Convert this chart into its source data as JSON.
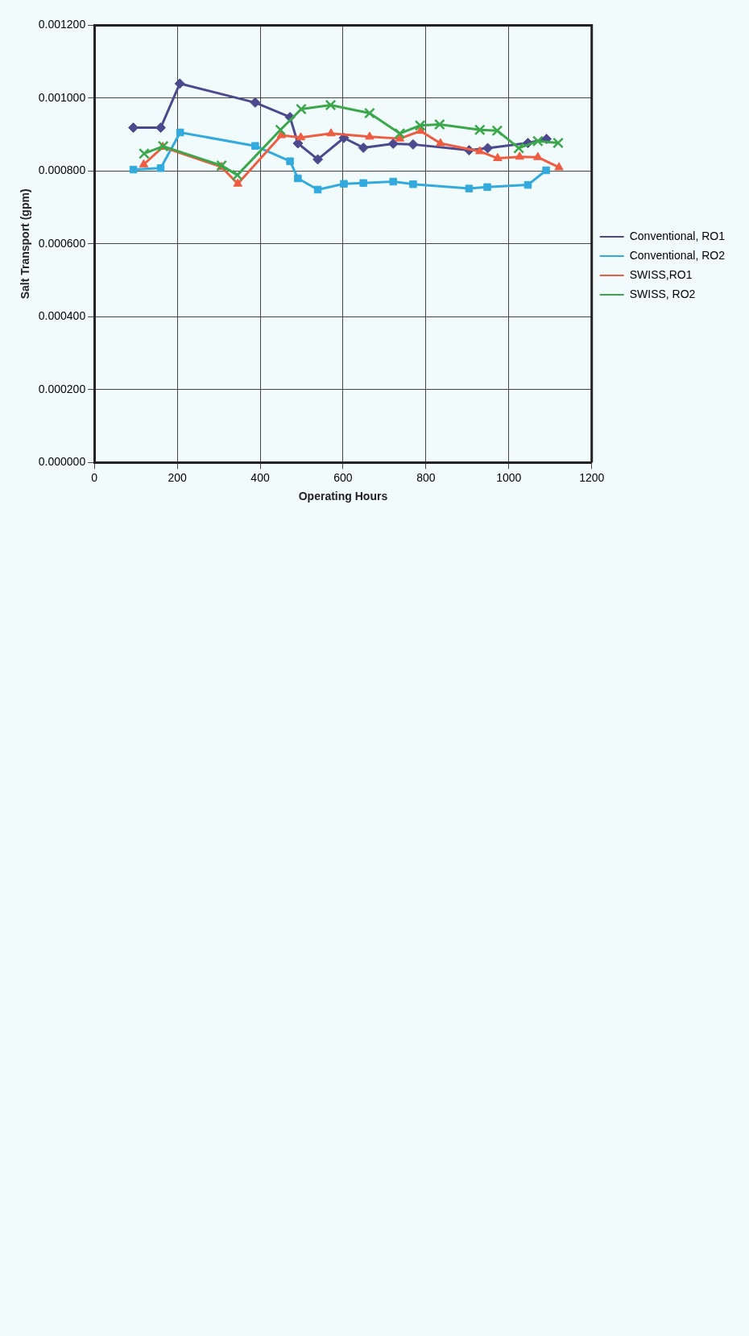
{
  "chart_data": {
    "type": "line",
    "xlabel": "Operating Hours",
    "ylabel": "Salt Transport (gpm)",
    "xlim": [
      0,
      1200
    ],
    "xticks": [
      0,
      200,
      400,
      600,
      800,
      1000,
      1200
    ],
    "ylim": [
      0,
      0.0012
    ],
    "yticks": [
      {
        "value": 0,
        "label": "0.000000"
      },
      {
        "value": 0.0002,
        "label": "0.000200"
      },
      {
        "value": 0.0004,
        "label": "0.000400"
      },
      {
        "value": 0.0006,
        "label": "0.000600"
      },
      {
        "value": 0.0008,
        "label": "0.000800"
      },
      {
        "value": 0.001,
        "label": "0.001000"
      },
      {
        "value": 0.0012,
        "label": "0.001200"
      }
    ],
    "grid": true,
    "legend": "right",
    "series": [
      {
        "name": "Conventional, RO1",
        "color": "#4b4a8f",
        "marker": "diamond",
        "x": [
          94,
          160,
          206,
          388,
          472,
          491,
          539,
          602,
          649,
          721,
          769,
          904,
          949,
          1046,
          1091
        ],
        "values": [
          0.000919,
          0.000919,
          0.00104,
          0.000988,
          0.000948,
          0.000876,
          0.000832,
          0.000891,
          0.000864,
          0.000875,
          0.000873,
          0.000857,
          0.000863,
          0.000877,
          0.000888
        ]
      },
      {
        "name": "Conventional, RO2",
        "color": "#33aadd",
        "marker": "square",
        "x": [
          94,
          160,
          207,
          388,
          472,
          491,
          539,
          602,
          649,
          721,
          769,
          904,
          948,
          1046,
          1090
        ],
        "values": [
          0.000804,
          0.000808,
          0.000906,
          0.000869,
          0.000827,
          0.00078,
          0.000749,
          0.000765,
          0.000767,
          0.000771,
          0.000764,
          0.000752,
          0.000756,
          0.000762,
          0.000802
        ]
      },
      {
        "name": "SWISS,RO1",
        "color": "#ee5c42",
        "marker": "triangle",
        "x": [
          119,
          165,
          307,
          346,
          451,
          498,
          571,
          664,
          737,
          787,
          835,
          930,
          973,
          1026,
          1070,
          1121
        ],
        "values": [
          0.000818,
          0.000866,
          0.000811,
          0.000765,
          0.000898,
          0.000892,
          0.000903,
          0.000894,
          0.000889,
          0.00091,
          0.000876,
          0.000854,
          0.000835,
          0.000839,
          0.000838,
          0.00081
        ]
      },
      {
        "name": "SWISS, RO2",
        "color": "#3aa84a",
        "marker": "cross",
        "x": [
          120,
          166,
          307,
          345,
          449,
          499,
          570,
          664,
          737,
          786,
          833,
          930,
          972,
          1024,
          1070,
          1119
        ],
        "values": [
          0.000848,
          0.000868,
          0.000815,
          0.000789,
          0.000913,
          0.00097,
          0.000981,
          0.000959,
          0.000903,
          0.000925,
          0.000928,
          0.000913,
          0.000911,
          0.000863,
          0.000882,
          0.000877
        ]
      }
    ]
  }
}
